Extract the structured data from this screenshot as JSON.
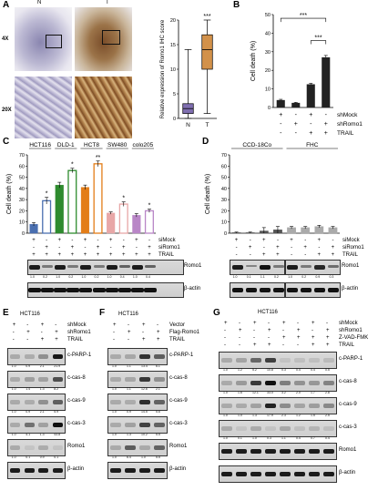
{
  "panels": {
    "A": {
      "label": "A",
      "col_labels": [
        "N",
        "T"
      ],
      "row_labels": [
        "4X",
        "20X"
      ],
      "boxplot": {
        "ylabel": "Relative expression of Romo1 IHC score",
        "categories": [
          "N",
          "T"
        ],
        "yticks": [
          "0",
          "5",
          "10",
          "15",
          "20"
        ],
        "significance": "***"
      }
    },
    "B": {
      "label": "B",
      "ylabel": "Cell death (%)",
      "yticks": [
        "0",
        "10",
        "20",
        "30",
        "40",
        "50"
      ],
      "row_labels": [
        "shMock",
        "shRomo1",
        "TRAIL"
      ],
      "signs": [
        [
          "+",
          "-",
          "+",
          "-"
        ],
        [
          "-",
          "+",
          "-",
          "+"
        ],
        [
          "-",
          "-",
          "+",
          "+"
        ]
      ],
      "significance": [
        "***",
        "***"
      ]
    },
    "C": {
      "label": "C",
      "ylabel": "Cell death (%)",
      "yticks": [
        "0",
        "10",
        "20",
        "30",
        "40",
        "50",
        "60",
        "70"
      ],
      "cell_lines": [
        "HCT116",
        "DLD-1",
        "HCT8",
        "SW480",
        "colo205"
      ],
      "row_labels": [
        "siMock",
        "siRomo1",
        "TRAIL"
      ],
      "signs": [
        [
          "+",
          "-",
          "+",
          "-",
          "+",
          "-",
          "+",
          "-",
          "+",
          "-"
        ],
        [
          "-",
          "+",
          "-",
          "+",
          "-",
          "+",
          "-",
          "+",
          "-",
          "+"
        ],
        [
          "+",
          "+",
          "+",
          "+",
          "+",
          "+",
          "+",
          "+",
          "+",
          "+"
        ]
      ],
      "stars": [
        "*",
        "*",
        "**",
        "*",
        "*"
      ],
      "blot_rows": [
        "Romo1",
        "β-actin"
      ],
      "numbers": [
        "1.0",
        "0.2",
        "1.0",
        "0.2",
        "1.0",
        "0.2",
        "1.0",
        "0.4",
        "1.0",
        "0.4"
      ]
    },
    "D": {
      "label": "D",
      "ylabel": "Cell death (%)",
      "yticks": [
        "0",
        "10",
        "20",
        "30",
        "40",
        "50",
        "60",
        "70"
      ],
      "cell_lines": [
        "CCD-18Co",
        "FHC"
      ],
      "row_labels": [
        "siMock",
        "siRomo1",
        "TRAIL"
      ],
      "signs": [
        [
          "+",
          "-",
          "+",
          "-",
          "+",
          "-",
          "+",
          "-"
        ],
        [
          "-",
          "+",
          "-",
          "+",
          "-",
          "+",
          "-",
          "+"
        ],
        [
          "-",
          "-",
          "+",
          "+",
          "-",
          "-",
          "+",
          "+"
        ]
      ],
      "blot_rows": [
        "Romo1",
        "β-actin"
      ],
      "numbers": [
        "1.0",
        "0.1",
        "1.1",
        "0.2",
        "1.0",
        "0.2",
        "0.9",
        "0.3"
      ]
    },
    "E": {
      "label": "E",
      "cell_line": "HCT116",
      "row_labels": [
        "shMock",
        "shRomo1",
        "TRAIL"
      ],
      "signs": [
        [
          "+",
          "-",
          "+",
          "-"
        ],
        [
          "-",
          "+",
          "-",
          "+"
        ],
        [
          "-",
          "-",
          "+",
          "+"
        ]
      ],
      "blot_rows": [
        "c-PARP-1",
        "c-cas-8",
        "c-cas-9",
        "c-cas-3",
        "Romo1",
        "β-actin"
      ],
      "numbers": [
        [
          "1.0",
          "0.9",
          "2.1",
          "21.9"
        ],
        [
          "1.0",
          "1.4",
          "1.3",
          "8.2"
        ],
        [
          "1.0",
          "0.9",
          "2.1",
          "5.9"
        ],
        [
          "1.0",
          "4.1",
          "1.3",
          "43.8"
        ],
        [
          "1.0",
          "0.1",
          "0.9",
          "0.1"
        ]
      ]
    },
    "F": {
      "label": "F",
      "cell_line": "HCT116",
      "row_labels": [
        "Vector",
        "Flag-Romo1",
        "TRAIL"
      ],
      "signs": [
        [
          "+",
          "-",
          "+",
          "-"
        ],
        [
          "-",
          "+",
          "-",
          "+"
        ],
        [
          "-",
          "-",
          "+",
          "+"
        ]
      ],
      "blot_rows": [
        "c-PARP-1",
        "c-cas-8",
        "c-cas-9",
        "c-cas-3",
        "Romo1",
        "β-actin"
      ],
      "numbers": [
        [
          "1.0",
          "1.1",
          "13.4",
          "6.1"
        ],
        [
          "1.0",
          "1.1",
          "12.6",
          "2.1"
        ],
        [
          "1.0",
          "0.9",
          "14.5",
          "5.6"
        ],
        [
          "1.0",
          "1.3",
          "10.2",
          "5.5"
        ],
        [
          "1.0",
          "6.4",
          "1.0",
          "5.5"
        ]
      ]
    },
    "G": {
      "label": "G",
      "cell_line": "HCT116",
      "row_labels": [
        "shMock",
        "shRomo1",
        "Z-VAD-FMK",
        "TRAIL"
      ],
      "signs": [
        [
          "+",
          "-",
          "+",
          "-",
          "+",
          "-",
          "+",
          "-"
        ],
        [
          "-",
          "+",
          "-",
          "+",
          "-",
          "+",
          "-",
          "+"
        ],
        [
          "-",
          "-",
          "-",
          "-",
          "+",
          "+",
          "+",
          "+"
        ],
        [
          "-",
          "-",
          "+",
          "+",
          "-",
          "-",
          "+",
          "+"
        ]
      ],
      "blot_rows": [
        "c-PARP-1",
        "c-cas-8",
        "c-cas-9",
        "c-cas-3",
        "Romo1",
        "β-actin"
      ],
      "numbers": [
        [
          "1.0",
          "1.2",
          "5.2",
          "10.8",
          "0.3",
          "0.4",
          "0.4",
          "0.5"
        ],
        [
          "1.0",
          "1.6",
          "12.1",
          "33.0",
          "3.2",
          "2.0",
          "1.7",
          "2.8"
        ],
        [
          "1.0",
          "1.0",
          "1.3",
          "17.9",
          "2.3",
          "1.2",
          "1.5",
          "2.5"
        ],
        [
          "1.0",
          "0.1",
          "1.0",
          "0.3",
          "1.1",
          "0.4",
          "0.7",
          "0.4"
        ]
      ]
    }
  },
  "chart_data": [
    {
      "type": "box",
      "title": "",
      "ylabel": "Relative expression of Romo1 IHC score",
      "categories": [
        "N",
        "T"
      ],
      "ylim": [
        0,
        20
      ],
      "series": [
        {
          "name": "N",
          "min": 0,
          "q1": 1,
          "median": 2,
          "q3": 3,
          "max": 14,
          "color": "#7f6fb0"
        },
        {
          "name": "T",
          "min": 1,
          "q1": 10,
          "median": 14,
          "q3": 17,
          "max": 20,
          "color": "#d2914a"
        }
      ]
    },
    {
      "type": "bar",
      "ylabel": "Cell death (%)",
      "ylim": [
        0,
        50
      ],
      "categories": [
        "1",
        "2",
        "3",
        "4"
      ],
      "values": [
        4,
        2.5,
        12.5,
        27
      ],
      "errors": [
        0.4,
        0.3,
        0.5,
        1
      ],
      "colors": [
        "#222222",
        "#222222",
        "#222222",
        "#222222"
      ]
    },
    {
      "type": "bar",
      "ylabel": "Cell death (%)",
      "ylim": [
        0,
        70
      ],
      "categories": [
        "HCT116 siMock",
        "HCT116 siRomo1",
        "DLD-1 siMock",
        "DLD-1 siRomo1",
        "HCT8 siMock",
        "HCT8 siRomo1",
        "SW480 siMock",
        "SW480 siRomo1",
        "colo205 siMock",
        "colo205 siRomo1"
      ],
      "values": [
        8,
        29,
        43,
        56,
        41,
        62,
        18,
        26,
        16,
        20
      ],
      "errors": [
        1.5,
        3,
        2.5,
        2,
        2,
        2.5,
        1,
        2,
        1.5,
        1.5
      ],
      "colors": [
        "#4a6fb0",
        "#4a6fb0",
        "#2e8b2e",
        "#2e8b2e",
        "#e37d18",
        "#e37d18",
        "#e8a7a7",
        "#e8a7a7",
        "#b986c7",
        "#b986c7"
      ],
      "hollow": [
        false,
        true,
        false,
        true,
        false,
        true,
        false,
        true,
        false,
        true
      ]
    },
    {
      "type": "bar",
      "ylabel": "Cell death (%)",
      "ylim": [
        0,
        70
      ],
      "categories": [
        "1",
        "2",
        "3",
        "4",
        "5",
        "6",
        "7",
        "8"
      ],
      "values": [
        0.5,
        0.5,
        2,
        3,
        5,
        5,
        6,
        5
      ],
      "errors": [
        0.5,
        0.5,
        3,
        3,
        1,
        1,
        1,
        1
      ],
      "colors": [
        "#555555",
        "#555555",
        "#555555",
        "#555555",
        "#aaaaaa",
        "#aaaaaa",
        "#aaaaaa",
        "#aaaaaa"
      ]
    }
  ]
}
